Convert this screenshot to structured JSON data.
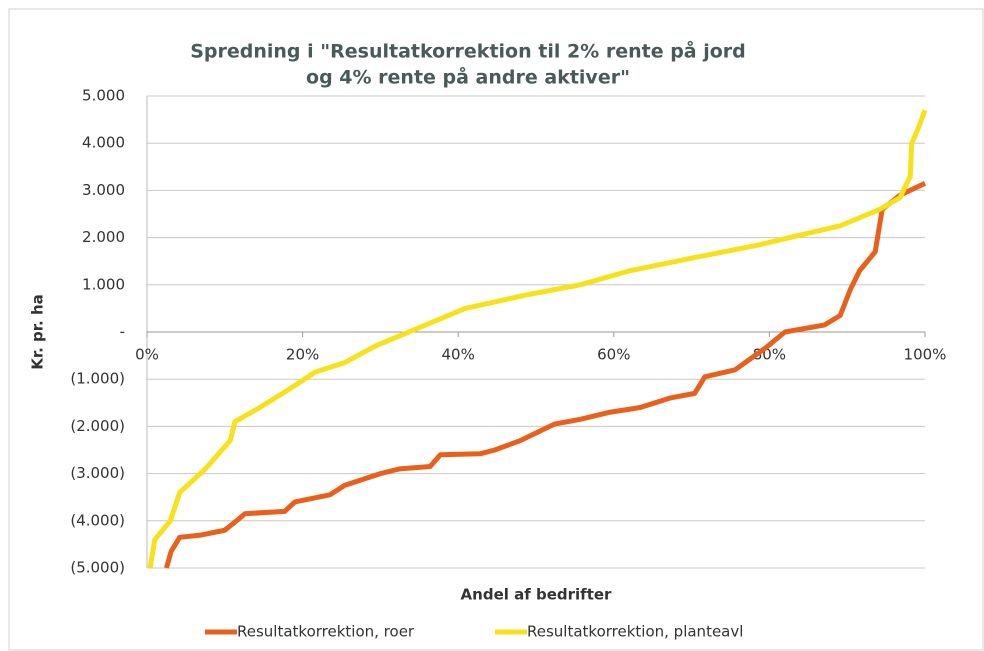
{
  "chart_data": {
    "type": "line",
    "title": [
      "Spredning i \"Resultatkorrektion til 2% rente på jord",
      "og 4% rente på andre aktiver\""
    ],
    "xlabel": "Andel af bedrifter",
    "ylabel": "Kr. pr. ha",
    "xlim": [
      0,
      100
    ],
    "xticks": [
      {
        "value": 0,
        "label": "0%"
      },
      {
        "value": 20,
        "label": "20%"
      },
      {
        "value": 40,
        "label": "40%"
      },
      {
        "value": 60,
        "label": "60%"
      },
      {
        "value": 80,
        "label": "80%"
      },
      {
        "value": 100,
        "label": "100%"
      }
    ],
    "ylim": [
      -5000,
      5000
    ],
    "yticks": [
      {
        "value": 5000,
        "label": "5.000"
      },
      {
        "value": 4000,
        "label": "4.000"
      },
      {
        "value": 3000,
        "label": "3.000"
      },
      {
        "value": 2000,
        "label": "2.000"
      },
      {
        "value": 1000,
        "label": "1.000"
      },
      {
        "value": 0,
        "label": "-"
      },
      {
        "value": -1000,
        "label": "(1.000)"
      },
      {
        "value": -2000,
        "label": "(2.000)"
      },
      {
        "value": -3000,
        "label": "(3.000)"
      },
      {
        "value": -4000,
        "label": "(4.000)"
      },
      {
        "value": -5000,
        "label": "(5.000)"
      }
    ],
    "grid": true,
    "legend": "bottom",
    "series": [
      {
        "name": "Resultatkorrektion, roer",
        "color": "#e8601c",
        "x": [
          2.5,
          3.1,
          4.2,
          7,
          10,
          11.5,
          12.6,
          17.7,
          19,
          23.5,
          25.4,
          30,
          32.5,
          36.4,
          37.7,
          42.8,
          44.7,
          48,
          52.4,
          55.7,
          59.5,
          63.4,
          67.2,
          70.4,
          71.7,
          75.6,
          79.4,
          82,
          87.1,
          89.1,
          90.4,
          91.6,
          93.6,
          94.5,
          96.8,
          100
        ],
        "values": [
          -5000,
          -4650,
          -4350,
          -4300,
          -4200,
          -4000,
          -3850,
          -3800,
          -3600,
          -3450,
          -3250,
          -3000,
          -2900,
          -2850,
          -2600,
          -2580,
          -2500,
          -2300,
          -1950,
          -1850,
          -1700,
          -1600,
          -1400,
          -1300,
          -950,
          -800,
          -350,
          0,
          150,
          350,
          900,
          1300,
          1700,
          2600,
          2900,
          3150
        ]
      },
      {
        "name": "Resultatkorrektion, planteavl",
        "color": "#f7e11b",
        "x": [
          0.4,
          1,
          3,
          4.2,
          7.5,
          10.7,
          11.3,
          14.5,
          18.4,
          21.6,
          25.4,
          29.3,
          35.1,
          40.9,
          49.2,
          55.7,
          62.1,
          71.1,
          78.8,
          83.9,
          89.1,
          94.2,
          96.8,
          98.1,
          98.3,
          99.1,
          100
        ],
        "values": [
          -5000,
          -4400,
          -4000,
          -3400,
          -2900,
          -2300,
          -1900,
          -1600,
          -1200,
          -850,
          -650,
          -300,
          100,
          500,
          800,
          1000,
          1300,
          1600,
          1850,
          2050,
          2250,
          2600,
          2850,
          3300,
          4000,
          4300,
          4700
        ]
      }
    ]
  }
}
